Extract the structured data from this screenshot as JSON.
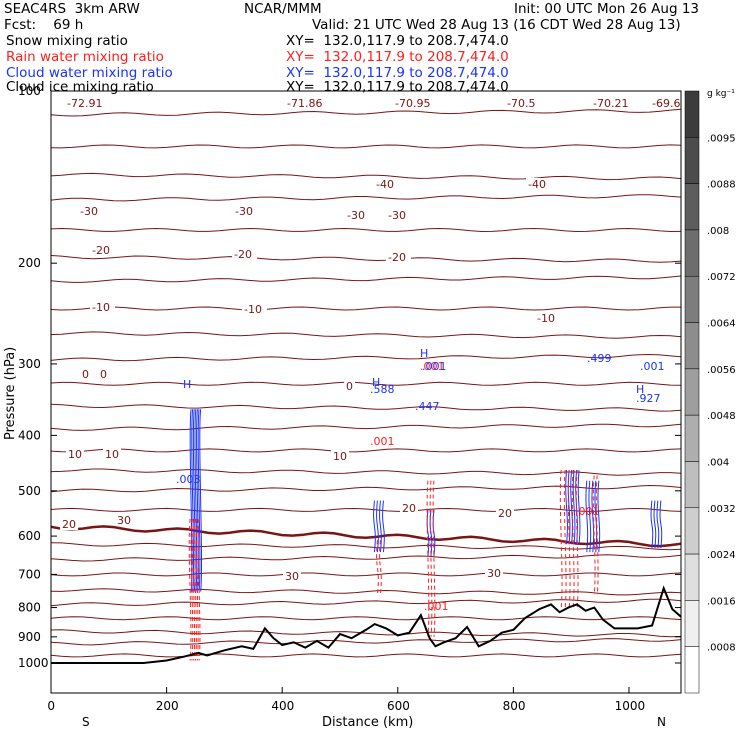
{
  "header": {
    "model": "SEAC4RS  3km ARW",
    "fcst": "Fcst:    69 h",
    "org": "NCAR/MMM",
    "init": "Init: 00 UTC Mon 26 Aug 13",
    "valid": "Valid: 21 UTC Wed 28 Aug 13 (16 CDT Wed 28 Aug 13)",
    "fields": [
      {
        "label": "Snow mixing ratio",
        "xy": "XY=  132.0,117.9 to 208.7,474.0",
        "color": "#000000"
      },
      {
        "label": "Rain water mixing ratio",
        "xy": "XY=  132.0,117.9 to 208.7,474.0",
        "color": "#ff2020"
      },
      {
        "label": "Cloud water mixing ratio",
        "xy": "XY=  132.0,117.9 to 208.7,474.0",
        "color": "#1a33ff"
      },
      {
        "label": "Cloud ice mixing ratio",
        "xy": "XY=  132.0,117.9 to 208.7,474.0",
        "color": "#000000"
      }
    ]
  },
  "chart_data": {
    "type": "contour",
    "xlabel": "Distance (km)",
    "ylabel": "Pressure (hPa)",
    "xlim": [
      0,
      1090
    ],
    "ylim": [
      1050,
      100
    ],
    "yscale": "log",
    "x_ticks": [
      0,
      200,
      400,
      600,
      800,
      1000
    ],
    "y_ticks": [
      100,
      200,
      300,
      400,
      500,
      600,
      700,
      800,
      900,
      1000
    ],
    "x_ends": {
      "left": "S",
      "right": "N"
    },
    "top_label": "100",
    "colorbar": {
      "unit": "g kg⁻¹",
      "labels": [
        ".0095",
        ".0088",
        ".008",
        ".0072",
        ".0064",
        ".0056",
        ".0048",
        ".004",
        ".0032",
        ".0024",
        ".0016",
        ".0008"
      ]
    },
    "temperature_labels": {
      "top": [
        "-72.91",
        "-71.86",
        "-70.95",
        "-70.5",
        "-70.21",
        "-69.6"
      ],
      "isotherms": [
        "-40",
        "-40",
        "-30",
        "-30",
        "-30",
        "-30",
        "-20",
        "-20",
        "-20",
        "-10",
        "-10",
        "-10",
        "0",
        "0",
        "0",
        "10",
        "10",
        "10",
        "20",
        "20",
        "20",
        "30",
        "30",
        "30"
      ]
    },
    "hydrometeor_labels": {
      "rain": [
        ".001",
        ".001",
        ".001",
        ".001"
      ],
      "cloud": [
        ".003",
        ".001",
        ".447",
        ".588",
        ".499",
        ".927",
        ".001"
      ],
      "highs": [
        "H",
        "H",
        "H",
        "H"
      ]
    },
    "terrain": {
      "x": [
        0,
        40,
        100,
        160,
        200,
        230,
        255,
        270,
        300,
        330,
        350,
        370,
        385,
        400,
        420,
        440,
        460,
        480,
        500,
        520,
        545,
        560,
        580,
        600,
        620,
        640,
        655,
        665,
        680,
        700,
        720,
        740,
        760,
        780,
        800,
        820,
        845,
        865,
        880,
        895,
        910,
        925,
        940,
        955,
        975,
        995,
        1015,
        1040,
        1060,
        1075,
        1090
      ],
      "p": [
        1000,
        1000,
        1000,
        1000,
        990,
        975,
        960,
        970,
        950,
        935,
        945,
        870,
        905,
        930,
        920,
        940,
        915,
        940,
        890,
        905,
        875,
        855,
        870,
        895,
        885,
        825,
        905,
        935,
        920,
        905,
        865,
        935,
        915,
        885,
        875,
        835,
        805,
        790,
        815,
        800,
        790,
        810,
        800,
        840,
        870,
        870,
        870,
        860,
        740,
        805,
        830
      ]
    }
  }
}
